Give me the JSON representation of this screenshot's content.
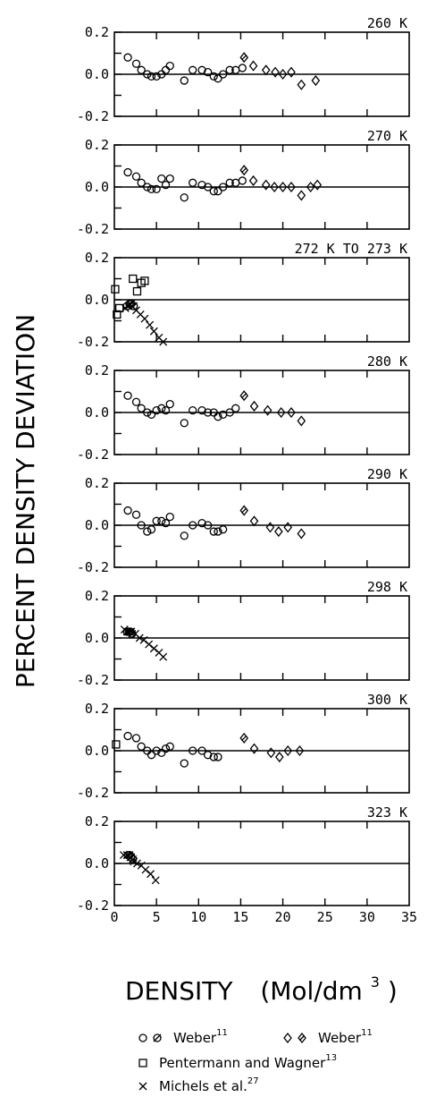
{
  "chart_data": {
    "type": "scatter",
    "ylabel": "PERCENT DENSITY DEVIATION",
    "xlabel": "DENSITY (Mol/dm³)",
    "xlabel_main": "DENSITY",
    "xlabel_unit": "(Mol/dm",
    "xlabel_exp": "3",
    "xlabel_close": ")",
    "xlim": [
      0,
      35
    ],
    "ylim": [
      -0.2,
      0.2
    ],
    "x_ticks": [
      "0",
      "5",
      "10",
      "15",
      "20",
      "25",
      "30",
      "35"
    ],
    "y_ticks": [
      "0.2",
      "0.0",
      "-0.2"
    ],
    "legend": [
      {
        "markers": [
          "circle",
          "circle-slash"
        ],
        "text": "Weber",
        "ref": "11"
      },
      {
        "markers": [
          "diamond",
          "diamond-slash"
        ],
        "text": "Weber",
        "ref": "11"
      },
      {
        "markers": [
          "square"
        ],
        "text": "Pentermann and Wagner",
        "ref": "13"
      },
      {
        "markers": [
          "cross"
        ],
        "text": "Michels et al.",
        "ref": "27"
      }
    ],
    "panels": [
      {
        "label": "260 K",
        "series": [
          {
            "marker": "circle",
            "x": [
              1.6,
              2.6,
              3.2,
              3.9,
              4.4,
              5.0,
              5.6,
              6.1,
              6.6,
              8.3,
              9.3,
              10.4,
              11.1,
              11.8,
              12.3,
              12.9,
              13.7,
              14.4,
              15.2
            ],
            "y": [
              0.08,
              0.05,
              0.02,
              0.0,
              -0.01,
              -0.01,
              0.0,
              0.02,
              0.04,
              -0.03,
              0.02,
              0.02,
              0.01,
              -0.01,
              -0.02,
              0.0,
              0.02,
              0.02,
              0.03
            ]
          },
          {
            "marker": "diamond",
            "x": [
              16.5,
              18.0,
              19.1,
              20.0,
              21.0,
              22.2,
              23.9
            ],
            "y": [
              0.04,
              0.02,
              0.01,
              0.0,
              0.01,
              -0.05,
              -0.03
            ]
          },
          {
            "marker": "diamond-slash",
            "x": [
              15.4
            ],
            "y": [
              0.08
            ]
          }
        ]
      },
      {
        "label": "270 K",
        "series": [
          {
            "marker": "circle",
            "x": [
              1.6,
              2.6,
              3.2,
              3.9,
              4.4,
              5.0,
              5.6,
              6.1,
              6.6,
              8.3,
              9.3,
              10.4,
              11.1,
              11.8,
              12.3,
              12.9,
              13.7,
              14.4,
              15.2
            ],
            "y": [
              0.07,
              0.05,
              0.02,
              0.0,
              -0.01,
              -0.01,
              0.04,
              0.01,
              0.04,
              -0.05,
              0.02,
              0.01,
              0.0,
              -0.02,
              -0.02,
              0.0,
              0.02,
              0.02,
              0.03
            ]
          },
          {
            "marker": "diamond",
            "x": [
              16.5,
              18.0,
              19.0,
              20.0,
              21.0,
              22.2,
              23.3,
              24.1
            ],
            "y": [
              0.03,
              0.01,
              0.0,
              0.0,
              0.0,
              -0.04,
              0.0,
              0.01
            ]
          },
          {
            "marker": "diamond-slash",
            "x": [
              15.4
            ],
            "y": [
              0.08
            ]
          }
        ]
      },
      {
        "label": "272 K TO 273 K",
        "series": [
          {
            "marker": "square",
            "x": [
              0.1,
              0.3,
              0.6,
              2.2,
              2.7,
              3.2,
              3.6
            ],
            "y": [
              0.05,
              -0.07,
              -0.04,
              0.1,
              0.04,
              0.08,
              0.09
            ]
          },
          {
            "marker": "circle-slash",
            "x": [
              1.5,
              1.8,
              2.0,
              2.3
            ],
            "y": [
              -0.03,
              -0.02,
              -0.02,
              -0.03
            ]
          },
          {
            "marker": "cross",
            "x": [
              1.3,
              1.7,
              2.1,
              2.6,
              3.1,
              3.6,
              4.2,
              4.7,
              5.3,
              5.8
            ],
            "y": [
              -0.04,
              -0.03,
              -0.03,
              -0.05,
              -0.07,
              -0.09,
              -0.12,
              -0.15,
              -0.18,
              -0.2
            ]
          }
        ]
      },
      {
        "label": "280 K",
        "series": [
          {
            "marker": "circle",
            "x": [
              1.6,
              2.6,
              3.2,
              3.9,
              4.4,
              5.0,
              5.6,
              6.1,
              6.6,
              8.3,
              9.3,
              10.4,
              11.1,
              11.8,
              12.3,
              12.9,
              13.7,
              14.4
            ],
            "y": [
              0.08,
              0.05,
              0.02,
              0.0,
              -0.01,
              0.01,
              0.02,
              0.01,
              0.04,
              -0.05,
              0.01,
              0.01,
              0.0,
              0.0,
              -0.02,
              -0.01,
              0.0,
              0.02
            ]
          },
          {
            "marker": "diamond",
            "x": [
              16.6,
              18.2,
              19.8,
              21.0,
              22.2
            ],
            "y": [
              0.03,
              0.01,
              0.0,
              0.0,
              -0.04
            ]
          },
          {
            "marker": "diamond-slash",
            "x": [
              15.4
            ],
            "y": [
              0.08
            ]
          }
        ]
      },
      {
        "label": "290 K",
        "series": [
          {
            "marker": "circle",
            "x": [
              1.6,
              2.6,
              3.2,
              3.9,
              4.4,
              5.0,
              5.6,
              6.1,
              6.6,
              8.3,
              9.3,
              10.4,
              11.1,
              11.8,
              12.3,
              12.9
            ],
            "y": [
              0.07,
              0.05,
              0.0,
              -0.03,
              -0.02,
              0.02,
              0.02,
              0.01,
              0.04,
              -0.05,
              0.0,
              0.01,
              0.0,
              -0.03,
              -0.03,
              -0.02
            ]
          },
          {
            "marker": "diamond",
            "x": [
              16.6,
              18.5,
              19.5,
              20.6,
              22.2
            ],
            "y": [
              0.02,
              -0.01,
              -0.03,
              -0.01,
              -0.04
            ]
          },
          {
            "marker": "diamond-slash",
            "x": [
              15.4
            ],
            "y": [
              0.07
            ]
          }
        ]
      },
      {
        "label": "298 K",
        "series": [
          {
            "marker": "circle-slash",
            "x": [
              1.5,
              1.7,
              1.9,
              2.1
            ],
            "y": [
              0.03,
              0.03,
              0.03,
              0.02
            ]
          },
          {
            "marker": "cross",
            "x": [
              1.2,
              1.6,
              2.0,
              2.5,
              3.0,
              3.5,
              4.1,
              4.7,
              5.3,
              5.8
            ],
            "y": [
              0.04,
              0.03,
              0.03,
              0.02,
              0.0,
              -0.01,
              -0.03,
              -0.05,
              -0.07,
              -0.09
            ]
          }
        ]
      },
      {
        "label": "300 K",
        "series": [
          {
            "marker": "square",
            "x": [
              0.2
            ],
            "y": [
              0.03
            ]
          },
          {
            "marker": "circle",
            "x": [
              1.6,
              2.6,
              3.2,
              3.9,
              4.4,
              5.0,
              5.6,
              6.1,
              6.6,
              8.3,
              9.3,
              10.4,
              11.1,
              11.8,
              12.3
            ],
            "y": [
              0.07,
              0.06,
              0.02,
              0.0,
              -0.02,
              0.0,
              -0.01,
              0.01,
              0.02,
              -0.06,
              0.0,
              0.0,
              -0.02,
              -0.03,
              -0.03
            ]
          },
          {
            "marker": "diamond",
            "x": [
              16.6,
              18.6,
              19.6,
              20.6,
              22.0
            ],
            "y": [
              0.01,
              -0.01,
              -0.03,
              0.0,
              0.0
            ]
          },
          {
            "marker": "diamond-slash",
            "x": [
              15.4
            ],
            "y": [
              0.06
            ]
          }
        ]
      },
      {
        "label": "323 K",
        "series": [
          {
            "marker": "circle-slash",
            "x": [
              1.6,
              1.8,
              2.0,
              2.2
            ],
            "y": [
              0.04,
              0.04,
              0.03,
              0.02
            ]
          },
          {
            "marker": "cross",
            "x": [
              1.1,
              1.5,
              1.9,
              2.3,
              2.7,
              3.2,
              3.7,
              4.3,
              4.9
            ],
            "y": [
              0.04,
              0.04,
              0.03,
              0.01,
              0.0,
              -0.01,
              -0.03,
              -0.05,
              -0.08
            ]
          }
        ]
      }
    ]
  }
}
